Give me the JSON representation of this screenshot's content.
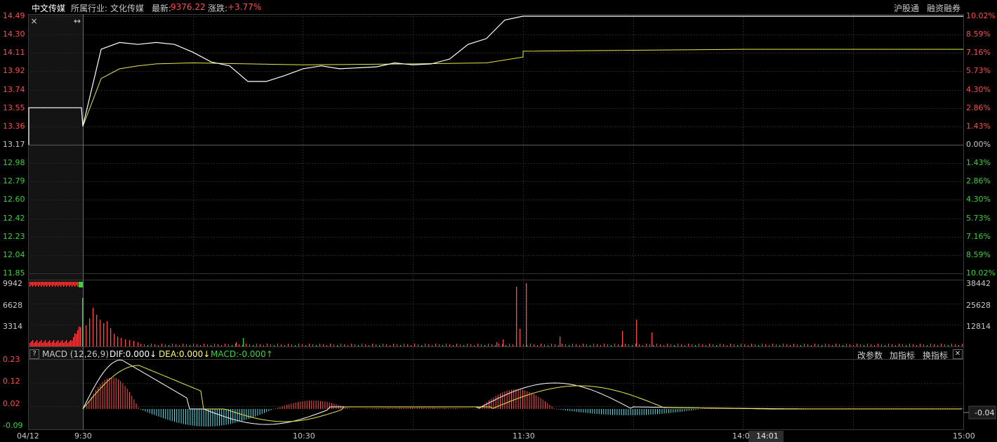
{
  "header": {
    "stock_name": "中文传媒",
    "industry_label": "所属行业:",
    "industry_name": "文化传媒",
    "latest_label": "最新:",
    "latest_value": "9376.22",
    "change_label": "涨跌:",
    "change_value": "+3.77%",
    "links": [
      "沪股通",
      "融资融券"
    ]
  },
  "price_panel": {
    "left_labels": [
      "14.49",
      "14.30",
      "14.11",
      "13.92",
      "13.74",
      "13.55",
      "13.36",
      "13.17",
      "12.98",
      "12.79",
      "12.60",
      "12.42",
      "12.23",
      "12.04",
      "11.85"
    ],
    "right_labels": [
      "10.02%",
      "8.59%",
      "7.16%",
      "5.73%",
      "4.30%",
      "2.86%",
      "1.43%",
      "0.00%",
      "1.43%",
      "2.86%",
      "4.30%",
      "5.73%",
      "7.16%",
      "8.59%",
      "10.02%"
    ],
    "close_icon": "close-icon",
    "expand_icon": "expand-arrows-icon"
  },
  "volume_panel": {
    "left_labels": [
      "9942",
      "6628",
      "3314"
    ],
    "right_labels": [
      "38442",
      "25628",
      "12814"
    ]
  },
  "macd_panel": {
    "help_label": "?",
    "title": "MACD (12,26,9)",
    "dif": "DIF:0.000↓",
    "dea": "DEA:0.000↓",
    "macd": "MACD:-0.000↑",
    "buttons": [
      "改参数",
      "加指标",
      "换指标"
    ],
    "close_label": "✕",
    "left_labels": [
      "0.23",
      "0.12",
      "0.02",
      "-0.09"
    ],
    "current_value": "-0.04"
  },
  "time_axis": {
    "labels": [
      "04/12",
      "9:30",
      "10:30",
      "11:30",
      "14:0",
      "15:00"
    ],
    "cursor_time": "14:01"
  },
  "chart_data": {
    "type": "line",
    "ylim": [
      11.85,
      14.49
    ],
    "series": [
      {
        "x": [
          "9:30",
          "9:35",
          "9:40",
          "9:45",
          "9:50",
          "9:55",
          "10:00",
          "10:05",
          "10:10",
          "10:15",
          "10:20",
          "10:25",
          "10:30",
          "10:35",
          "10:40",
          "10:45",
          "10:50",
          "10:55",
          "11:00",
          "11:05",
          "11:10",
          "11:15",
          "11:20",
          "11:25",
          "11:30",
          "13:00",
          "14:00",
          "15:00"
        ],
        "values": [
          13.36,
          14.15,
          14.22,
          14.2,
          14.22,
          14.2,
          14.12,
          14.02,
          13.98,
          13.82,
          13.82,
          13.88,
          13.95,
          13.98,
          13.95,
          13.96,
          13.97,
          14.01,
          13.99,
          14.0,
          14.05,
          14.2,
          14.26,
          14.45,
          14.49,
          14.49,
          14.49,
          14.49
        ]
      },
      {
        "x": [
          "9:30",
          "9:35",
          "9:40",
          "9:45",
          "9:50",
          "10:00",
          "10:30",
          "11:00",
          "11:20",
          "11:30",
          "13:00",
          "14:00",
          "15:00"
        ],
        "values": [
          13.36,
          13.85,
          13.95,
          13.98,
          14.0,
          14.01,
          13.99,
          14.0,
          14.01,
          14.07,
          14.13,
          14.15,
          14.15
        ]
      }
    ]
  },
  "colors": {
    "up": "#ff4d4d",
    "down": "#37d437",
    "price_line": "#ffffff",
    "avg_line": "#e8e84a",
    "grid": "#2a2a2a",
    "grid_mid": "#555555"
  }
}
